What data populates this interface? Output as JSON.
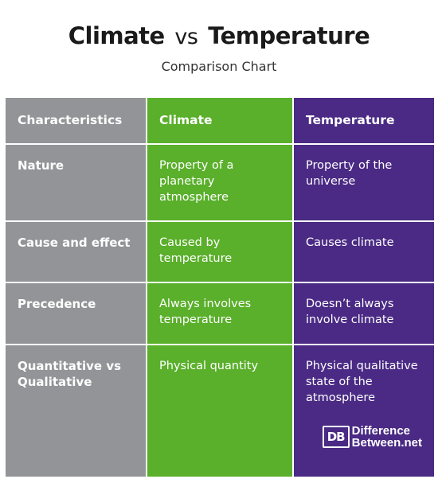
{
  "title": {
    "left": "Climate",
    "middle": "vs",
    "right": "Temperature"
  },
  "subtitle": "Comparison Chart",
  "columns": [
    "Characteristics",
    "Climate",
    "Temperature"
  ],
  "rows": [
    {
      "label": "Nature",
      "climate": "Property of a planetary atmosphere",
      "temperature": "Property of the universe"
    },
    {
      "label": "Cause and effect",
      "climate": "Caused by temperature",
      "temperature": "Causes climate"
    },
    {
      "label": "Precedence",
      "climate": "Always involves temperature",
      "temperature": "Doesn’t always involve climate"
    },
    {
      "label": "Quantitative vs Qualitative",
      "climate": "Physical quantity",
      "temperature": "Physical qualitative state of the atmosphere"
    }
  ],
  "brand": {
    "mark": "DB",
    "line1": "Difference",
    "line2": "Between.net"
  },
  "colors": {
    "characteristics": "#929497",
    "climate": "#5aaf2b",
    "temperature": "#4a2a84"
  }
}
